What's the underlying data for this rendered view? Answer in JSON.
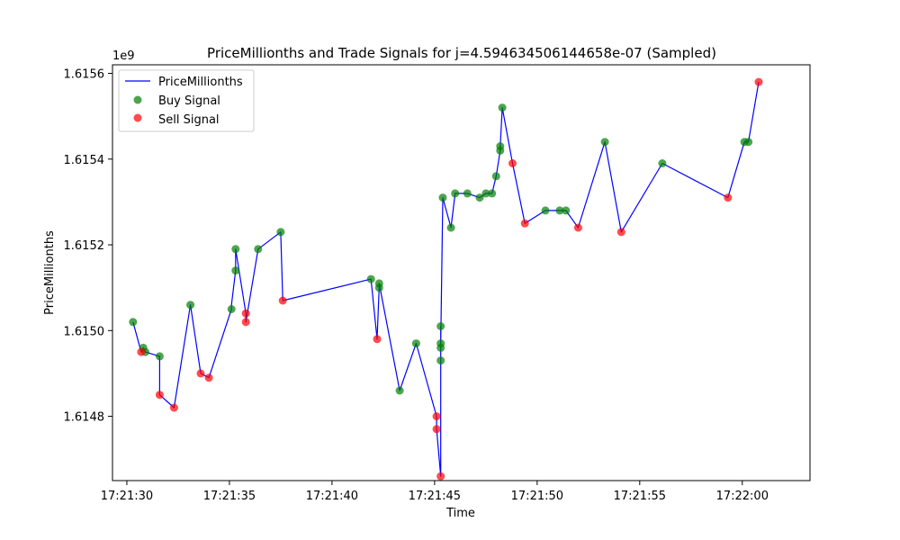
{
  "chart_data": {
    "type": "scatter",
    "title": "PriceMillionths and Trade Signals for j=4.594634506144658e-07 (Sampled)",
    "xlabel": "Time",
    "ylabel": "PriceMillionths",
    "y_offset_label": "1e9",
    "x_tick_labels": [
      "17:21:30",
      "17:21:35",
      "17:21:40",
      "17:21:45",
      "17:21:50",
      "17:21:55",
      "17:22:00"
    ],
    "y_tick_labels": [
      "1.6148",
      "1.6150",
      "1.6152",
      "1.6154",
      "1.6156"
    ],
    "y_ticks": [
      1.6148,
      1.615,
      1.6152,
      1.6154,
      1.6156
    ],
    "x_ticks": [
      30,
      35,
      40,
      45,
      50,
      55,
      60
    ],
    "xlim": [
      29.3,
      63.3
    ],
    "ylim": [
      1.61465,
      1.61562
    ],
    "grid": false,
    "legend_position": "top-left",
    "legend": [
      {
        "label": "PriceMillionths",
        "kind": "line"
      },
      {
        "label": "Buy Signal",
        "kind": "marker"
      },
      {
        "label": "Sell Signal",
        "kind": "marker"
      }
    ],
    "colors": {
      "line": "#0000ff",
      "buy": "#008000",
      "sell": "#ff0000"
    },
    "series": [
      {
        "name": "PriceMillionths",
        "x": [
          30.3,
          30.7,
          30.8,
          30.9,
          31.6,
          31.6,
          32.3,
          32.3,
          33.1,
          33.6,
          34.0,
          35.1,
          35.1,
          35.3,
          35.3,
          35.8,
          35.8,
          36.4,
          36.4,
          37.5,
          37.6,
          41.9,
          42.2,
          42.3,
          42.3,
          43.3,
          44.1,
          45.1,
          45.1,
          45.3,
          45.3,
          45.3,
          45.3,
          45.3,
          45.4,
          45.4,
          45.8,
          46.0,
          46.6,
          47.2,
          47.5,
          47.8,
          48.0,
          48.2,
          48.2,
          48.3,
          48.8,
          49.4,
          50.4,
          51.1,
          51.4,
          52.0,
          53.3,
          54.1,
          56.1,
          59.3,
          60.1,
          60.3,
          60.8
        ],
        "y": [
          1.61502,
          1.61495,
          1.61496,
          1.61495,
          1.61494,
          1.61485,
          1.61482,
          1.61482,
          1.61506,
          1.6149,
          1.61489,
          1.61505,
          1.61506,
          1.61514,
          1.61519,
          1.61504,
          1.61502,
          1.61519,
          1.61519,
          1.61523,
          1.61507,
          1.61512,
          1.61498,
          1.6151,
          1.61511,
          1.61486,
          1.61497,
          1.6148,
          1.61477,
          1.61466,
          1.61466,
          1.61501,
          1.61493,
          1.61497,
          1.61531,
          1.61531,
          1.61524,
          1.61532,
          1.61532,
          1.61531,
          1.61532,
          1.61532,
          1.61536,
          1.61542,
          1.61543,
          1.61552,
          1.61539,
          1.61525,
          1.61528,
          1.61528,
          1.61528,
          1.61524,
          1.61544,
          1.61523,
          1.61539,
          1.61531,
          1.61544,
          1.61544,
          1.61558
        ]
      },
      {
        "name": "Buy Signal",
        "x": [
          30.3,
          30.8,
          30.9,
          31.6,
          33.1,
          35.1,
          35.3,
          35.3,
          36.4,
          37.5,
          41.9,
          42.3,
          42.3,
          43.3,
          44.1,
          45.3,
          45.3,
          45.3,
          45.3,
          45.4,
          45.8,
          46.0,
          46.6,
          47.2,
          47.5,
          47.8,
          48.0,
          48.2,
          48.2,
          48.3,
          50.4,
          51.1,
          51.4,
          53.3,
          56.1,
          60.1,
          60.3
        ],
        "y": [
          1.61502,
          1.61496,
          1.61495,
          1.61494,
          1.61506,
          1.61505,
          1.61514,
          1.61519,
          1.61519,
          1.61523,
          1.61512,
          1.6151,
          1.61511,
          1.61486,
          1.61497,
          1.61501,
          1.61493,
          1.61496,
          1.61497,
          1.61531,
          1.61524,
          1.61532,
          1.61532,
          1.61531,
          1.61532,
          1.61532,
          1.61536,
          1.61542,
          1.61543,
          1.61552,
          1.61528,
          1.61528,
          1.61528,
          1.61544,
          1.61539,
          1.61544,
          1.61544
        ]
      },
      {
        "name": "Sell Signal",
        "x": [
          30.7,
          31.6,
          32.3,
          33.6,
          34.0,
          35.8,
          35.8,
          37.6,
          42.2,
          45.1,
          45.1,
          45.3,
          48.8,
          49.4,
          52.0,
          54.1,
          59.3,
          60.8
        ],
        "y": [
          1.61495,
          1.61485,
          1.61482,
          1.6149,
          1.61489,
          1.61504,
          1.61502,
          1.61507,
          1.61498,
          1.6148,
          1.61477,
          1.61466,
          1.61539,
          1.61525,
          1.61524,
          1.61523,
          1.61531,
          1.61558
        ]
      }
    ]
  }
}
